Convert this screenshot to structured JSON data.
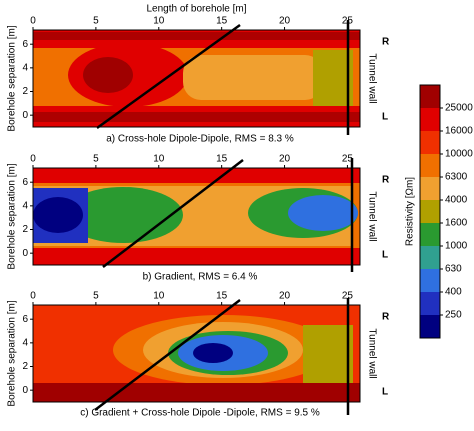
{
  "chart_data": [
    {
      "type": "contour",
      "xlabel": "Length of borehole [m]",
      "ylabel": "Borehole separation [m]",
      "caption": "a) Cross-hole Dipole-Dipole, RMS = 8.3 %",
      "right_top": "R",
      "right_bottom": "L",
      "right_label": "Tunnel wall",
      "xlim": [
        0,
        26
      ],
      "ylim": [
        -1,
        7.2
      ],
      "xticks": [
        0,
        5,
        10,
        15,
        20,
        25
      ],
      "yticks": [
        0,
        2,
        4,
        6
      ]
    },
    {
      "type": "contour",
      "ylabel": "Borehole separation [m]",
      "caption": "b) Gradient, RMS = 6.4 %",
      "right_top": "R",
      "right_bottom": "L",
      "right_label": "Tunnel wall",
      "xlim": [
        0,
        26
      ],
      "ylim": [
        -1,
        7.2
      ],
      "xticks": [
        0,
        5,
        10,
        15,
        20,
        25
      ],
      "yticks": [
        0,
        2,
        4,
        6
      ]
    },
    {
      "type": "contour",
      "ylabel": "Borehole separation [m]",
      "caption": "c) Gradient + Cross-hole Dipole -Dipole, RMS = 9.5 %",
      "right_top": "R",
      "right_bottom": "L",
      "right_label": "Tunnel wall",
      "xlim": [
        0,
        26
      ],
      "ylim": [
        -1,
        7.2
      ],
      "xticks": [
        0,
        5,
        10,
        15,
        20,
        25
      ],
      "yticks": [
        0,
        2,
        4,
        6
      ]
    }
  ],
  "colorbar": {
    "label": "Resistivity [Ωm]",
    "ticks": [
      25000,
      16000,
      10000,
      6300,
      4000,
      1600,
      1000,
      630,
      400,
      250
    ],
    "colors": [
      "#a00000",
      "#e00000",
      "#f03000",
      "#f07000",
      "#f0a030",
      "#b0a000",
      "#2a9a30",
      "#30a090",
      "#2f70e0",
      "#2030c0",
      "#000080"
    ]
  }
}
